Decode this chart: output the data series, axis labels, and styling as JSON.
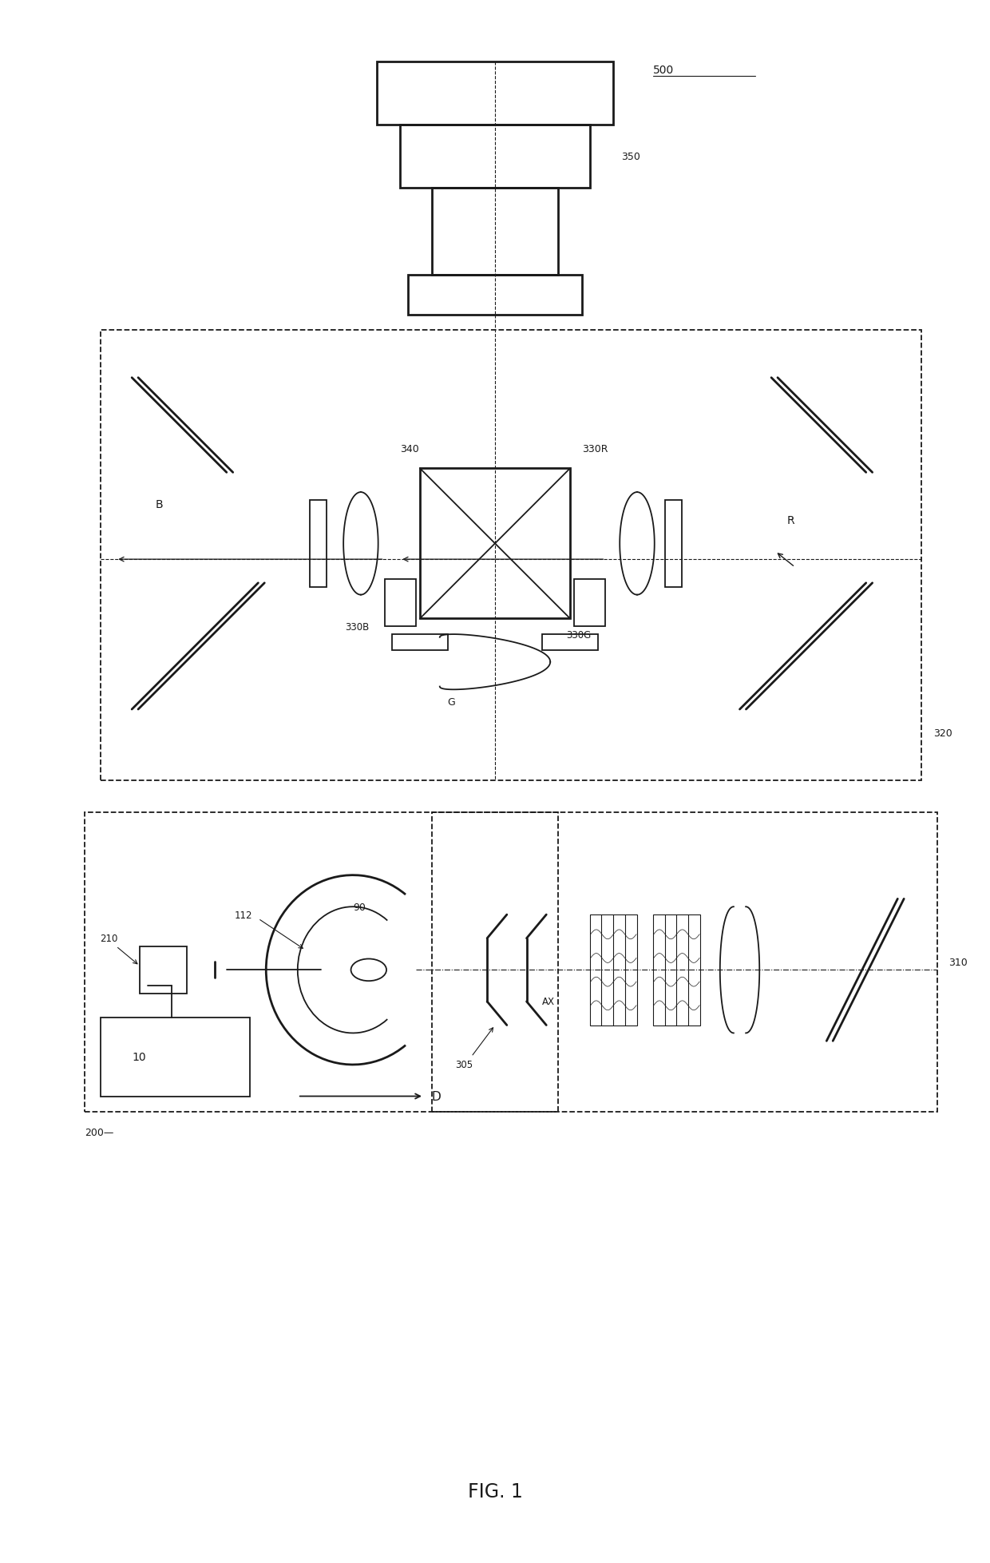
{
  "bg": "#ffffff",
  "lc": "#1a1a1a",
  "fig_w": 12.4,
  "fig_h": 19.58,
  "dpi": 100,
  "labels": {
    "fig_title": "FIG. 1",
    "500": "500",
    "350": "350",
    "340": "340",
    "330R": "330R",
    "330B": "330B",
    "330G": "330G",
    "320": "320",
    "310": "310",
    "305": "305",
    "200": "200",
    "210": "210",
    "112": "112",
    "90": "90",
    "10": "10",
    "B": "B",
    "R": "R",
    "G": "G",
    "AX": "AX",
    "D": "D"
  }
}
